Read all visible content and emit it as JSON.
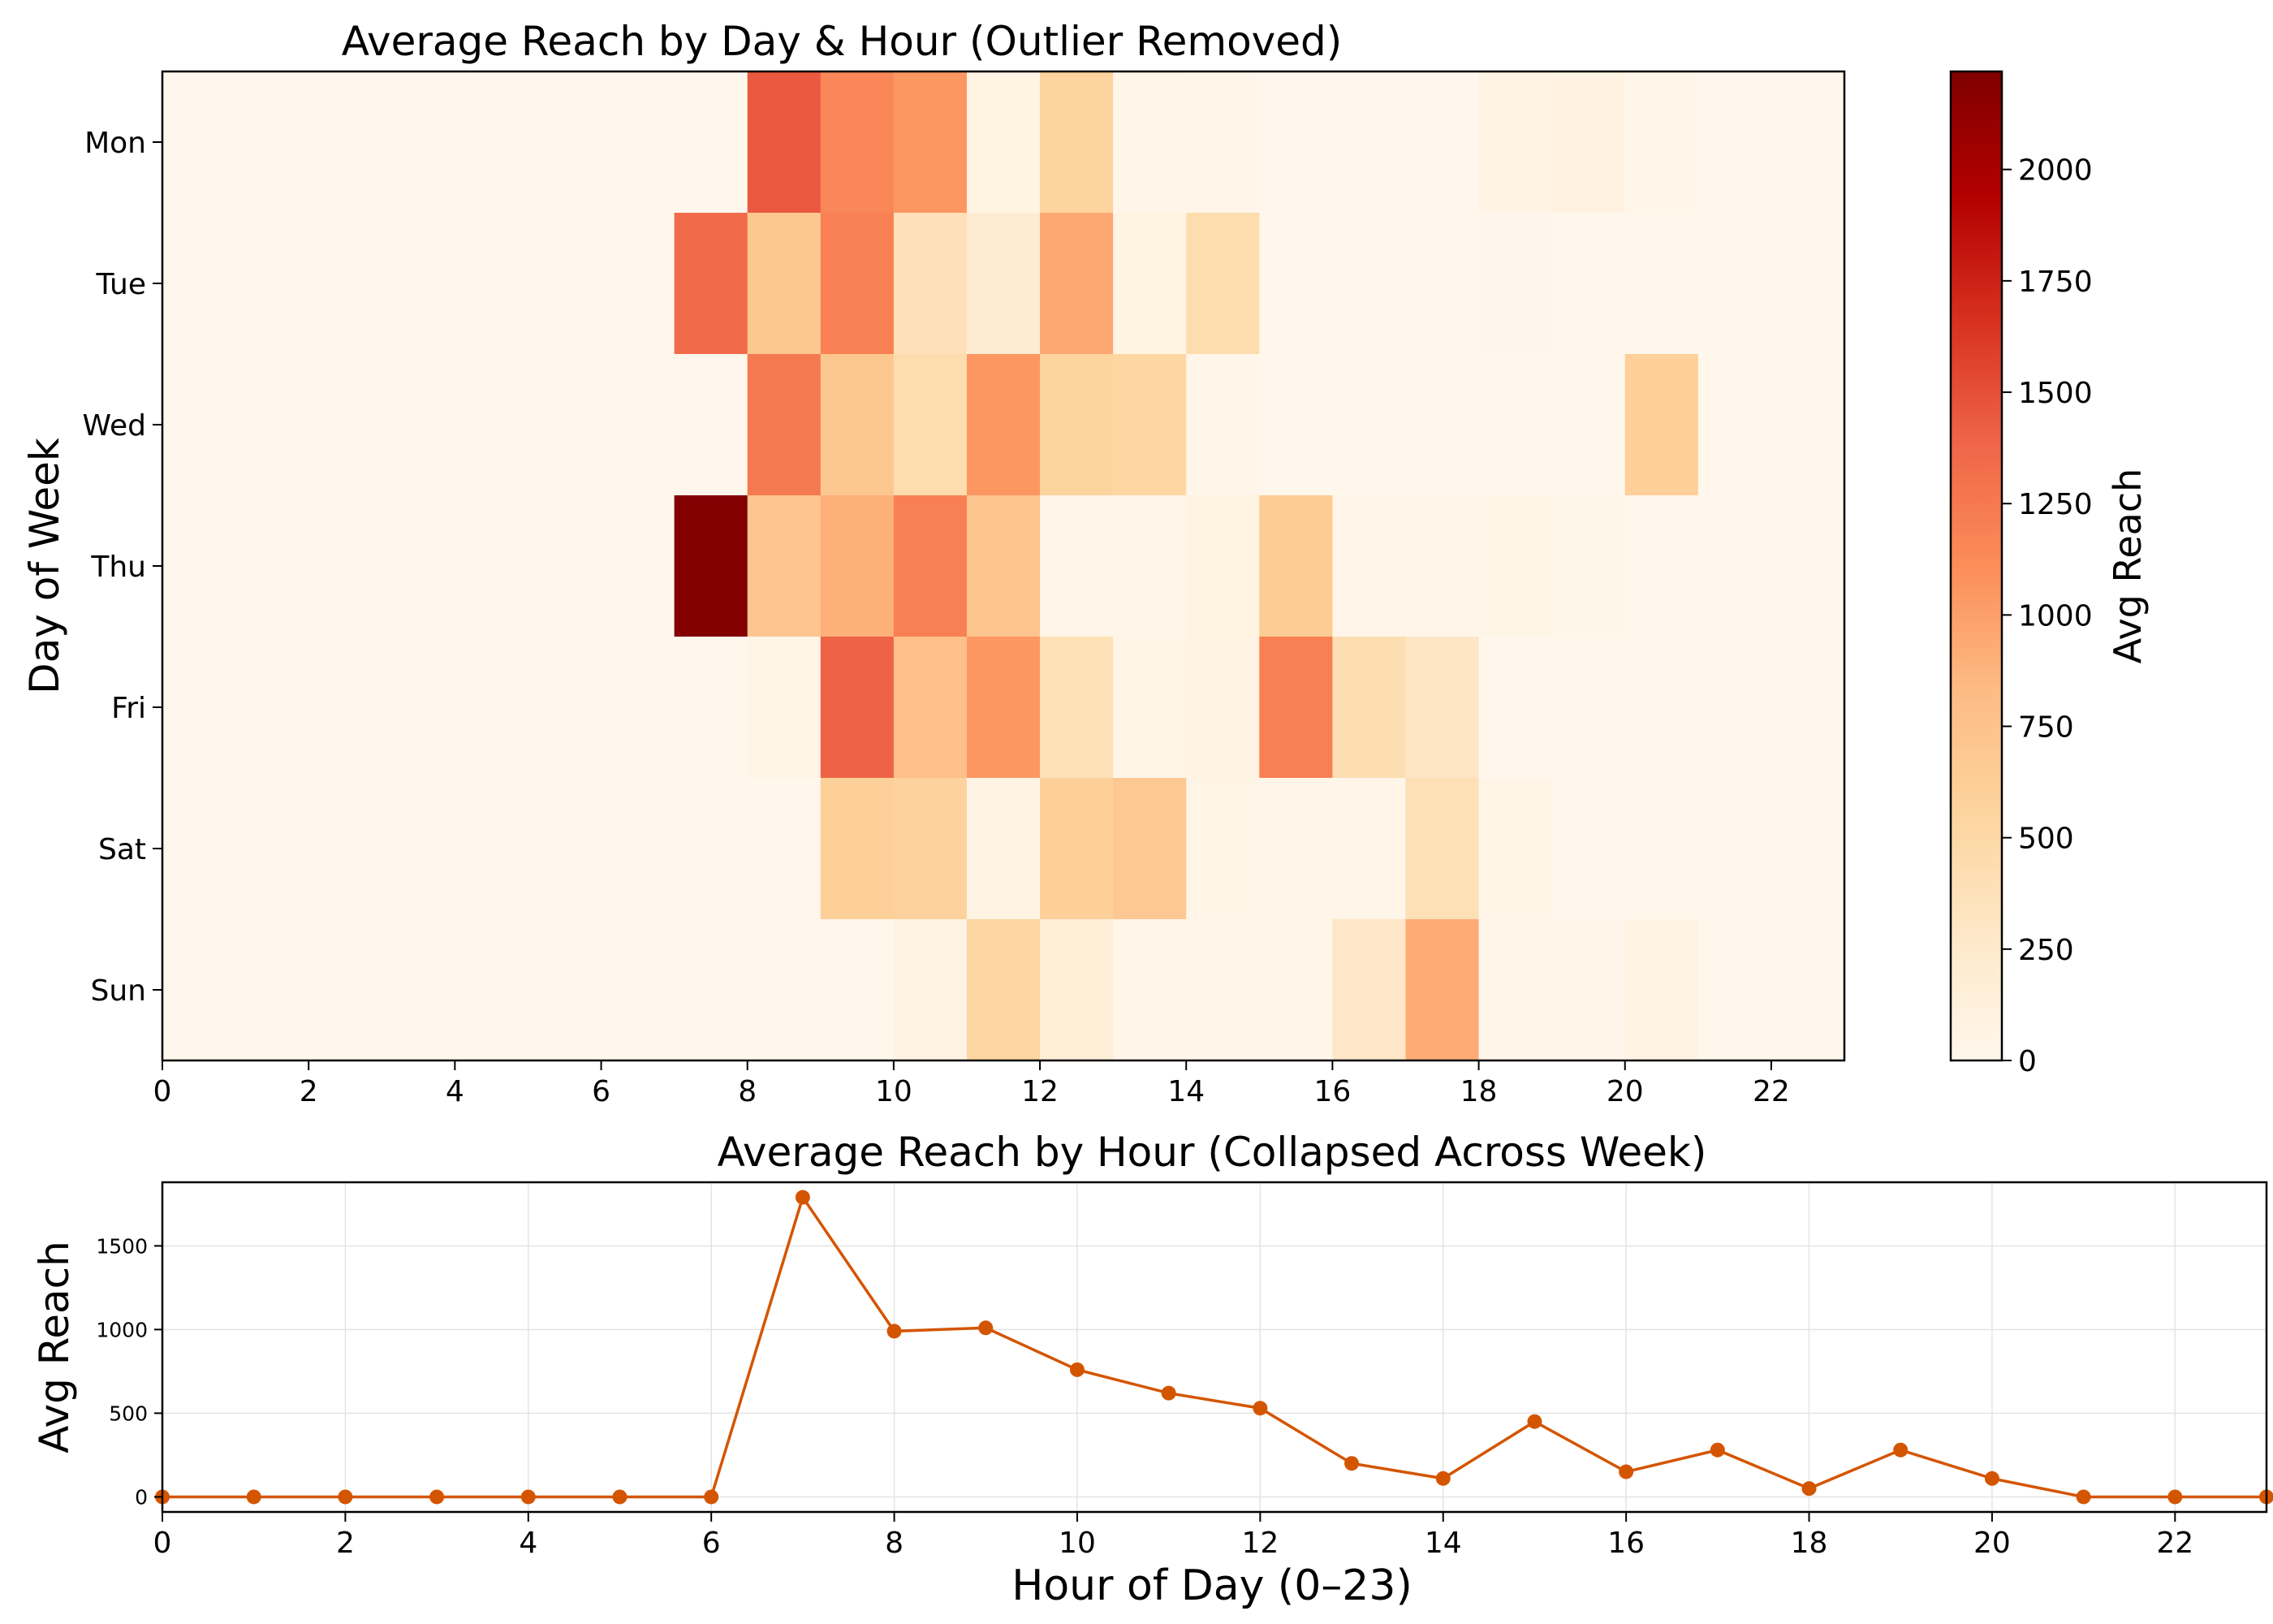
{
  "chart_data": [
    {
      "type": "heatmap",
      "title": "Average Reach by Day & Hour (Outlier Removed)",
      "xlabel": "",
      "ylabel": "Day of Week",
      "x_ticks": [
        0,
        2,
        4,
        6,
        8,
        10,
        12,
        14,
        16,
        18,
        20,
        22
      ],
      "xlim": [
        0,
        23
      ],
      "rows": [
        "Mon",
        "Tue",
        "Wed",
        "Thu",
        "Fri",
        "Sat",
        "Sun"
      ],
      "hours": [
        0,
        1,
        2,
        3,
        4,
        5,
        6,
        7,
        8,
        9,
        10,
        11,
        12,
        13,
        14,
        15,
        16,
        17,
        18,
        19,
        20,
        21,
        22,
        23
      ],
      "values": [
        [
          0,
          0,
          0,
          0,
          0,
          0,
          0,
          0,
          1450,
          1150,
          1050,
          80,
          560,
          30,
          20,
          0,
          0,
          0,
          60,
          90,
          20,
          0,
          0,
          0
        ],
        [
          0,
          0,
          0,
          0,
          0,
          0,
          0,
          1350,
          700,
          1200,
          380,
          200,
          950,
          80,
          450,
          0,
          0,
          0,
          10,
          0,
          0,
          0,
          0,
          0
        ],
        [
          0,
          0,
          0,
          0,
          0,
          0,
          0,
          0,
          1250,
          700,
          450,
          1050,
          560,
          530,
          20,
          0,
          0,
          0,
          0,
          0,
          610,
          0,
          0,
          0
        ],
        [
          0,
          0,
          0,
          0,
          0,
          0,
          0,
          2200,
          720,
          900,
          1200,
          730,
          30,
          30,
          80,
          660,
          20,
          20,
          40,
          15,
          0,
          0,
          0,
          0
        ],
        [
          0,
          0,
          0,
          0,
          0,
          0,
          0,
          0,
          40,
          1400,
          780,
          1050,
          390,
          40,
          70,
          1200,
          420,
          300,
          0,
          0,
          0,
          0,
          0,
          0
        ],
        [
          0,
          0,
          0,
          0,
          0,
          0,
          0,
          0,
          0,
          600,
          580,
          60,
          600,
          690,
          40,
          20,
          30,
          390,
          50,
          0,
          0,
          0,
          0,
          0
        ],
        [
          0,
          0,
          0,
          0,
          0,
          0,
          0,
          0,
          0,
          0,
          70,
          540,
          160,
          30,
          20,
          20,
          290,
          920,
          20,
          20,
          70,
          0,
          0,
          0
        ]
      ],
      "colorbar": {
        "label": "Avg Reach",
        "range": [
          0,
          2220
        ],
        "ticks": [
          0,
          250,
          500,
          750,
          1000,
          1250,
          1500,
          1750,
          2000
        ],
        "colormap": "OrRd",
        "colors": [
          "#fff7ec",
          "#fee8c8",
          "#fdd49e",
          "#fdbb84",
          "#fc8d59",
          "#ef6548",
          "#d7301f",
          "#b30000",
          "#7f0000"
        ]
      }
    },
    {
      "type": "line",
      "title": "Average Reach by Hour (Collapsed Across Week)",
      "xlabel": "Hour of Day (0–23)",
      "ylabel": "Avg Reach",
      "x": [
        0,
        1,
        2,
        3,
        4,
        5,
        6,
        7,
        8,
        9,
        10,
        11,
        12,
        13,
        14,
        15,
        16,
        17,
        18,
        19,
        20,
        21,
        22,
        23
      ],
      "values": [
        0,
        0,
        0,
        0,
        0,
        0,
        0,
        1790,
        990,
        1010,
        760,
        620,
        530,
        200,
        110,
        450,
        150,
        280,
        50,
        280,
        110,
        0,
        0,
        0
      ],
      "x_ticks": [
        0,
        2,
        4,
        6,
        8,
        10,
        12,
        14,
        16,
        18,
        20,
        22
      ],
      "y_ticks": [
        0,
        500,
        1000,
        1500
      ],
      "xlim": [
        0,
        23
      ],
      "ylim": [
        -90,
        1880
      ],
      "grid": true,
      "color": "#d45500"
    }
  ]
}
